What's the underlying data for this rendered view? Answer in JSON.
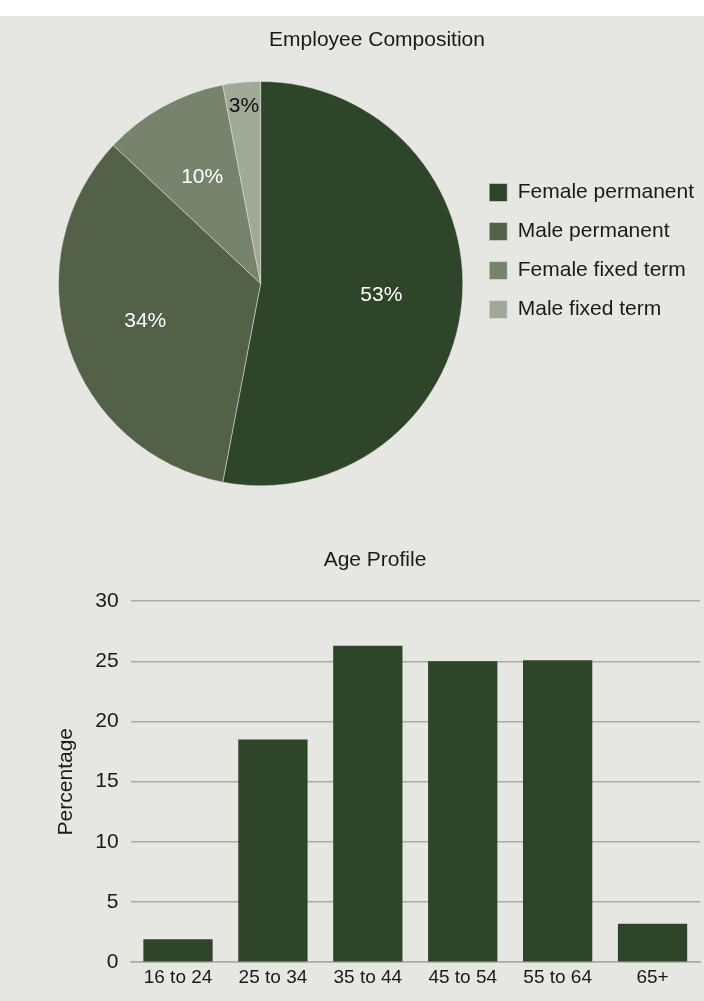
{
  "chart_data": [
    {
      "type": "pie",
      "title": "Employee Composition",
      "categories": [
        "Female permanent",
        "Male permanent",
        "Female fixed term",
        "Male fixed term"
      ],
      "values": [
        53,
        34,
        10,
        3
      ],
      "colors": [
        "#2f4529",
        "#526148",
        "#77836d",
        "#a0a897"
      ],
      "value_labels": [
        "53%",
        "34%",
        "10%",
        "3%"
      ],
      "legend": "right"
    },
    {
      "type": "bar",
      "title": "Age Profile",
      "ylabel": "Percentage",
      "categories": [
        "16 to 24",
        "25 to 34",
        "35 to 44",
        "45 to 54",
        "55 to 64",
        "65+"
      ],
      "values": [
        1.9,
        18.5,
        26.3,
        25.0,
        25.1,
        3.2
      ],
      "color": "#2f4529",
      "ylim": [
        0,
        30
      ],
      "yticks": [
        0,
        5,
        10,
        15,
        20,
        25,
        30
      ],
      "grid": "y",
      "legend": false
    }
  ]
}
